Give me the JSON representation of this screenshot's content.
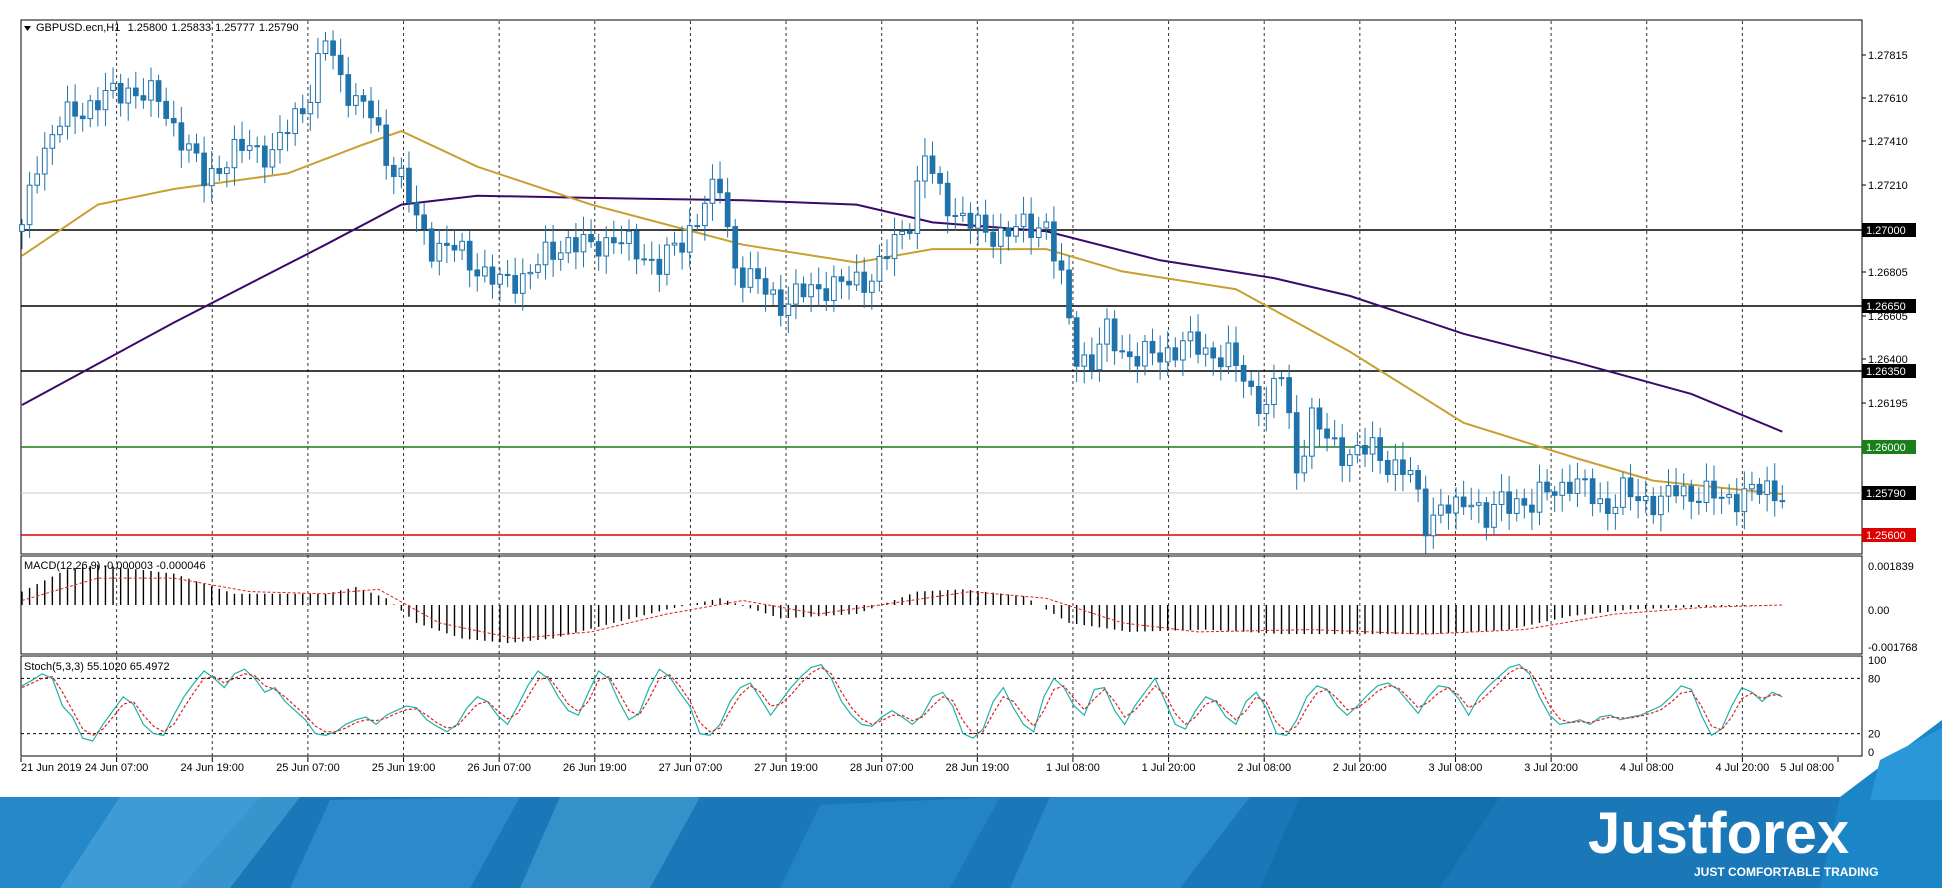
{
  "chart_data": [
    {
      "type": "candlestick",
      "title": "GBPUSD.ecn,H1",
      "ohlc_header": [
        "1.25800",
        "1.25833",
        "1.25777",
        "1.25790"
      ],
      "ylim": [
        1.2552,
        1.279
      ],
      "price_ticks": [
        "1.27815",
        "1.27610",
        "1.27410",
        "1.27210",
        "1.26805",
        "1.26605",
        "1.26400",
        "1.26195"
      ],
      "levels": [
        {
          "value": 1.27,
          "label": "1.27000",
          "color": "#000000"
        },
        {
          "value": 1.2665,
          "label": "1.26650",
          "color": "#000000"
        },
        {
          "value": 1.2635,
          "label": "1.26350",
          "color": "#000000"
        },
        {
          "value": 1.26,
          "label": "1.26000",
          "color": "#1a7f1a"
        },
        {
          "value": 1.256,
          "label": "1.25600",
          "color": "#dd0000"
        }
      ],
      "current_price": {
        "value": 1.2579,
        "label": "1.25790"
      },
      "x_labels": [
        "21 Jun 2019",
        "24 Jun 07:00",
        "24 Jun 19:00",
        "25 Jun 07:00",
        "25 Jun 19:00",
        "26 Jun 07:00",
        "26 Jun 19:00",
        "27 Jun 07:00",
        "27 Jun 19:00",
        "28 Jun 07:00",
        "28 Jun 19:00",
        "1 Jul 08:00",
        "1 Jul 20:00",
        "2 Jul 08:00",
        "2 Jul 20:00",
        "3 Jul 08:00",
        "3 Jul 20:00",
        "4 Jul 08:00",
        "4 Jul 20:00",
        "5 Jul 08:00"
      ],
      "price_path": [
        {
          "x": 0,
          "y": 1.2696
        },
        {
          "x": 2,
          "y": 1.2728
        },
        {
          "x": 5,
          "y": 1.2745
        },
        {
          "x": 9,
          "y": 1.2753
        },
        {
          "x": 14,
          "y": 1.276
        },
        {
          "x": 18,
          "y": 1.2755
        },
        {
          "x": 21,
          "y": 1.2738
        },
        {
          "x": 24,
          "y": 1.272
        },
        {
          "x": 27,
          "y": 1.2728
        },
        {
          "x": 30,
          "y": 1.2735
        },
        {
          "x": 33,
          "y": 1.273
        },
        {
          "x": 36,
          "y": 1.2748
        },
        {
          "x": 38,
          "y": 1.2758
        },
        {
          "x": 40,
          "y": 1.2782
        },
        {
          "x": 42,
          "y": 1.2765
        },
        {
          "x": 44,
          "y": 1.2755
        },
        {
          "x": 46,
          "y": 1.2748
        },
        {
          "x": 48,
          "y": 1.273
        },
        {
          "x": 50,
          "y": 1.272
        },
        {
          "x": 52,
          "y": 1.27
        },
        {
          "x": 54,
          "y": 1.269
        },
        {
          "x": 57,
          "y": 1.2688
        },
        {
          "x": 60,
          "y": 1.268
        },
        {
          "x": 63,
          "y": 1.2672
        },
        {
          "x": 66,
          "y": 1.2676
        },
        {
          "x": 69,
          "y": 1.2684
        },
        {
          "x": 72,
          "y": 1.2692
        },
        {
          "x": 75,
          "y": 1.2688
        },
        {
          "x": 78,
          "y": 1.2694
        },
        {
          "x": 81,
          "y": 1.2686
        },
        {
          "x": 84,
          "y": 1.2682
        },
        {
          "x": 87,
          "y": 1.269
        },
        {
          "x": 90,
          "y": 1.271
        },
        {
          "x": 92,
          "y": 1.2715
        },
        {
          "x": 94,
          "y": 1.268
        },
        {
          "x": 97,
          "y": 1.2672
        },
        {
          "x": 100,
          "y": 1.2664
        },
        {
          "x": 103,
          "y": 1.2668
        },
        {
          "x": 106,
          "y": 1.2672
        },
        {
          "x": 109,
          "y": 1.2672
        },
        {
          "x": 112,
          "y": 1.2676
        },
        {
          "x": 115,
          "y": 1.269
        },
        {
          "x": 117,
          "y": 1.2702
        },
        {
          "x": 119,
          "y": 1.273
        },
        {
          "x": 121,
          "y": 1.2712
        },
        {
          "x": 124,
          "y": 1.2702
        },
        {
          "x": 127,
          "y": 1.2695
        },
        {
          "x": 130,
          "y": 1.2696
        },
        {
          "x": 133,
          "y": 1.2698
        },
        {
          "x": 135,
          "y": 1.27
        },
        {
          "x": 137,
          "y": 1.2672
        },
        {
          "x": 139,
          "y": 1.264
        },
        {
          "x": 141,
          "y": 1.2638
        },
        {
          "x": 143,
          "y": 1.265
        },
        {
          "x": 145,
          "y": 1.2642
        },
        {
          "x": 147,
          "y": 1.264
        },
        {
          "x": 150,
          "y": 1.264
        },
        {
          "x": 153,
          "y": 1.2646
        },
        {
          "x": 156,
          "y": 1.2642
        },
        {
          "x": 159,
          "y": 1.264
        },
        {
          "x": 162,
          "y": 1.2624
        },
        {
          "x": 164,
          "y": 1.2618
        },
        {
          "x": 166,
          "y": 1.2632
        },
        {
          "x": 168,
          "y": 1.259
        },
        {
          "x": 170,
          "y": 1.2612
        },
        {
          "x": 172,
          "y": 1.2602
        },
        {
          "x": 175,
          "y": 1.2596
        },
        {
          "x": 178,
          "y": 1.2598
        },
        {
          "x": 181,
          "y": 1.259
        },
        {
          "x": 183,
          "y": 1.2586
        },
        {
          "x": 185,
          "y": 1.2566
        },
        {
          "x": 187,
          "y": 1.2572
        },
        {
          "x": 189,
          "y": 1.257
        },
        {
          "x": 191,
          "y": 1.2578
        },
        {
          "x": 193,
          "y": 1.2566
        },
        {
          "x": 195,
          "y": 1.2574
        },
        {
          "x": 197,
          "y": 1.2576
        },
        {
          "x": 199,
          "y": 1.2572
        },
        {
          "x": 201,
          "y": 1.258
        },
        {
          "x": 204,
          "y": 1.2583
        },
        {
          "x": 207,
          "y": 1.2578
        },
        {
          "x": 209,
          "y": 1.2572
        },
        {
          "x": 211,
          "y": 1.2578
        },
        {
          "x": 214,
          "y": 1.2576
        },
        {
          "x": 216,
          "y": 1.2574
        },
        {
          "x": 218,
          "y": 1.258
        },
        {
          "x": 221,
          "y": 1.2578
        },
        {
          "x": 224,
          "y": 1.2576
        },
        {
          "x": 227,
          "y": 1.2578
        },
        {
          "x": 230,
          "y": 1.258
        },
        {
          "x": 232,
          "y": 1.2579
        }
      ],
      "ma_slow": [
        {
          "x": 0,
          "y": 1.2618
        },
        {
          "x": 20,
          "y": 1.2655
        },
        {
          "x": 40,
          "y": 1.269
        },
        {
          "x": 50,
          "y": 1.2708
        },
        {
          "x": 60,
          "y": 1.2712
        },
        {
          "x": 75,
          "y": 1.2711
        },
        {
          "x": 95,
          "y": 1.271
        },
        {
          "x": 110,
          "y": 1.2708
        },
        {
          "x": 120,
          "y": 1.27
        },
        {
          "x": 135,
          "y": 1.2696
        },
        {
          "x": 150,
          "y": 1.2683
        },
        {
          "x": 165,
          "y": 1.2675
        },
        {
          "x": 175,
          "y": 1.2667
        },
        {
          "x": 190,
          "y": 1.265
        },
        {
          "x": 205,
          "y": 1.2637
        },
        {
          "x": 220,
          "y": 1.2623
        },
        {
          "x": 232,
          "y": 1.2606
        }
      ],
      "ma_fast": [
        {
          "x": 0,
          "y": 1.2685
        },
        {
          "x": 10,
          "y": 1.2708
        },
        {
          "x": 20,
          "y": 1.2715
        },
        {
          "x": 35,
          "y": 1.2722
        },
        {
          "x": 45,
          "y": 1.2735
        },
        {
          "x": 50,
          "y": 1.2741
        },
        {
          "x": 60,
          "y": 1.2725
        },
        {
          "x": 75,
          "y": 1.2708
        },
        {
          "x": 95,
          "y": 1.269
        },
        {
          "x": 110,
          "y": 1.2682
        },
        {
          "x": 120,
          "y": 1.2688
        },
        {
          "x": 135,
          "y": 1.2688
        },
        {
          "x": 145,
          "y": 1.2678
        },
        {
          "x": 160,
          "y": 1.267
        },
        {
          "x": 175,
          "y": 1.2642
        },
        {
          "x": 190,
          "y": 1.261
        },
        {
          "x": 205,
          "y": 1.2594
        },
        {
          "x": 215,
          "y": 1.2584
        },
        {
          "x": 232,
          "y": 1.2578
        }
      ]
    },
    {
      "type": "histogram",
      "title": "MACD(12,26,9) -0.000003 -0.000046",
      "y_ticks": [
        "0.001839",
        "0.00",
        "-0.001768"
      ],
      "ylim": [
        -0.0021,
        0.0021
      ],
      "histogram": [
        {
          "x": 0,
          "y": 0.0006
        },
        {
          "x": 6,
          "y": 0.0016
        },
        {
          "x": 10,
          "y": 0.0018
        },
        {
          "x": 20,
          "y": 0.0014
        },
        {
          "x": 28,
          "y": 0.0005
        },
        {
          "x": 40,
          "y": 0.0005
        },
        {
          "x": 44,
          "y": 0.0008
        },
        {
          "x": 48,
          "y": 0.0003
        },
        {
          "x": 52,
          "y": -0.0008
        },
        {
          "x": 58,
          "y": -0.0015
        },
        {
          "x": 64,
          "y": -0.0017
        },
        {
          "x": 70,
          "y": -0.0015
        },
        {
          "x": 78,
          "y": -0.0008
        },
        {
          "x": 85,
          "y": -0.0002
        },
        {
          "x": 92,
          "y": 0.0003
        },
        {
          "x": 100,
          "y": -0.0006
        },
        {
          "x": 110,
          "y": -0.0004
        },
        {
          "x": 118,
          "y": 0.0006
        },
        {
          "x": 124,
          "y": 0.0007
        },
        {
          "x": 132,
          "y": 0.0004
        },
        {
          "x": 138,
          "y": -0.0008
        },
        {
          "x": 146,
          "y": -0.0012
        },
        {
          "x": 156,
          "y": -0.0011
        },
        {
          "x": 166,
          "y": -0.0013
        },
        {
          "x": 176,
          "y": -0.0013
        },
        {
          "x": 186,
          "y": -0.0013
        },
        {
          "x": 196,
          "y": -0.0011
        },
        {
          "x": 204,
          "y": -0.0005
        },
        {
          "x": 212,
          "y": -0.0002
        },
        {
          "x": 220,
          "y": -0.0001
        },
        {
          "x": 232,
          "y": 0.0
        }
      ],
      "signal": [
        {
          "x": 0,
          "y": 0.0002
        },
        {
          "x": 10,
          "y": 0.0012
        },
        {
          "x": 20,
          "y": 0.0012
        },
        {
          "x": 30,
          "y": 0.0006
        },
        {
          "x": 40,
          "y": 0.0005
        },
        {
          "x": 47,
          "y": 0.0007
        },
        {
          "x": 55,
          "y": -0.0008
        },
        {
          "x": 65,
          "y": -0.0015
        },
        {
          "x": 75,
          "y": -0.0012
        },
        {
          "x": 85,
          "y": -0.0004
        },
        {
          "x": 95,
          "y": 0.0002
        },
        {
          "x": 105,
          "y": -0.0004
        },
        {
          "x": 115,
          "y": 0.0001
        },
        {
          "x": 125,
          "y": 0.0006
        },
        {
          "x": 135,
          "y": 0.0003
        },
        {
          "x": 145,
          "y": -0.0008
        },
        {
          "x": 155,
          "y": -0.0012
        },
        {
          "x": 170,
          "y": -0.0011
        },
        {
          "x": 185,
          "y": -0.0013
        },
        {
          "x": 198,
          "y": -0.0011
        },
        {
          "x": 210,
          "y": -0.0004
        },
        {
          "x": 222,
          "y": -0.0001
        },
        {
          "x": 232,
          "y": 0.0
        }
      ]
    },
    {
      "type": "line",
      "title": "Stoch(5,3,3) 55.1020 65.4972",
      "y_ticks": [
        "100",
        "80",
        "20",
        "0"
      ],
      "ylim": [
        0,
        100
      ],
      "levels": [
        80,
        20
      ],
      "series": [
        {
          "color": "#20b2aa",
          "values": [
            72,
            78,
            85,
            80,
            50,
            38,
            15,
            12,
            30,
            45,
            60,
            52,
            30,
            20,
            18,
            40,
            60,
            75,
            88,
            80,
            70,
            85,
            90,
            80,
            65,
            70,
            55,
            45,
            35,
            20,
            18,
            22,
            30,
            35,
            38,
            30,
            40,
            45,
            50,
            48,
            35,
            28,
            22,
            30,
            48,
            60,
            55,
            40,
            30,
            50,
            72,
            88,
            80,
            60,
            45,
            40,
            65,
            88,
            80,
            55,
            35,
            42,
            70,
            90,
            82,
            65,
            50,
            20,
            18,
            30,
            55,
            70,
            75,
            58,
            40,
            55,
            70,
            82,
            92,
            95,
            80,
            55,
            40,
            30,
            28,
            38,
            45,
            38,
            30,
            40,
            60,
            65,
            50,
            20,
            15,
            25,
            55,
            70,
            48,
            30,
            22,
            60,
            80,
            70,
            50,
            40,
            68,
            70,
            45,
            30,
            50,
            65,
            80,
            55,
            30,
            25,
            45,
            60,
            55,
            38,
            30,
            55,
            65,
            48,
            20,
            18,
            35,
            60,
            72,
            68,
            50,
            40,
            50,
            62,
            72,
            75,
            68,
            55,
            42,
            60,
            72,
            70,
            58,
            40,
            60,
            72,
            82,
            92,
            95,
            85,
            60,
            40,
            30,
            32,
            35,
            30,
            38,
            40,
            35,
            38,
            40,
            45,
            50,
            60,
            72,
            68,
            40,
            18,
            25,
            50,
            70,
            65,
            55,
            65,
            60
          ]
        },
        {
          "color": "#dd2222",
          "dashed": true,
          "values": [
            70,
            75,
            80,
            82,
            65,
            45,
            25,
            18,
            25,
            38,
            52,
            55,
            40,
            28,
            22,
            30,
            48,
            65,
            80,
            82,
            75,
            80,
            85,
            83,
            72,
            68,
            60,
            50,
            40,
            28,
            22,
            22,
            26,
            32,
            35,
            34,
            37,
            42,
            46,
            47,
            40,
            32,
            26,
            28,
            40,
            52,
            55,
            45,
            36,
            42,
            60,
            78,
            82,
            68,
            52,
            44,
            55,
            78,
            82,
            65,
            45,
            40,
            58,
            80,
            84,
            72,
            56,
            32,
            22,
            26,
            45,
            62,
            72,
            65,
            50,
            52,
            62,
            75,
            86,
            92,
            85,
            65,
            48,
            36,
            30,
            34,
            40,
            40,
            34,
            38,
            50,
            60,
            56,
            34,
            20,
            22,
            42,
            60,
            55,
            40,
            28,
            45,
            68,
            72,
            58,
            46,
            58,
            68,
            55,
            38,
            45,
            58,
            72,
            62,
            42,
            30,
            38,
            52,
            56,
            45,
            35,
            45,
            60,
            54,
            32,
            22,
            28,
            48,
            64,
            68,
            58,
            46,
            48,
            56,
            66,
            72,
            70,
            60,
            48,
            54,
            64,
            70,
            62,
            48,
            54,
            64,
            75,
            86,
            92,
            88,
            72,
            50,
            36,
            32,
            33,
            32,
            35,
            38,
            37,
            37,
            39,
            42,
            46,
            54,
            64,
            66,
            50,
            28,
            24,
            38,
            58,
            64,
            58,
            62,
            62
          ]
        }
      ]
    }
  ],
  "branding": {
    "logo_text": "Justforex",
    "tagline": "JUST COMFORTABLE TRADING"
  }
}
